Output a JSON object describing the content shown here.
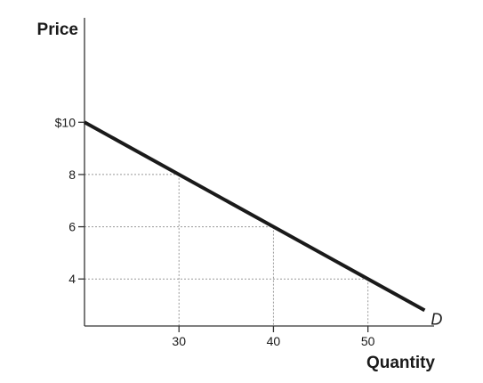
{
  "chart_data": {
    "type": "line",
    "xlabel": "Quantity",
    "ylabel": "Price",
    "xlim": [
      20,
      57
    ],
    "ylim": [
      2.2,
      14
    ],
    "x_ticks": [
      {
        "value": 30,
        "label": "30"
      },
      {
        "value": 40,
        "label": "40"
      },
      {
        "value": 50,
        "label": "50"
      }
    ],
    "y_ticks": [
      {
        "value": 10,
        "label": "$10"
      },
      {
        "value": 8,
        "label": "8"
      },
      {
        "value": 6,
        "label": "6"
      },
      {
        "value": 4,
        "label": "4"
      }
    ],
    "series": [
      {
        "name": "D",
        "x": [
          20,
          56
        ],
        "y": [
          10,
          2.8
        ]
      }
    ],
    "reference_points": [
      {
        "x": 30,
        "y": 8
      },
      {
        "x": 40,
        "y": 6
      },
      {
        "x": 50,
        "y": 4
      }
    ],
    "colors": {
      "line": "#1a1a1a",
      "axis": "#333333",
      "guide": "#999999"
    }
  }
}
